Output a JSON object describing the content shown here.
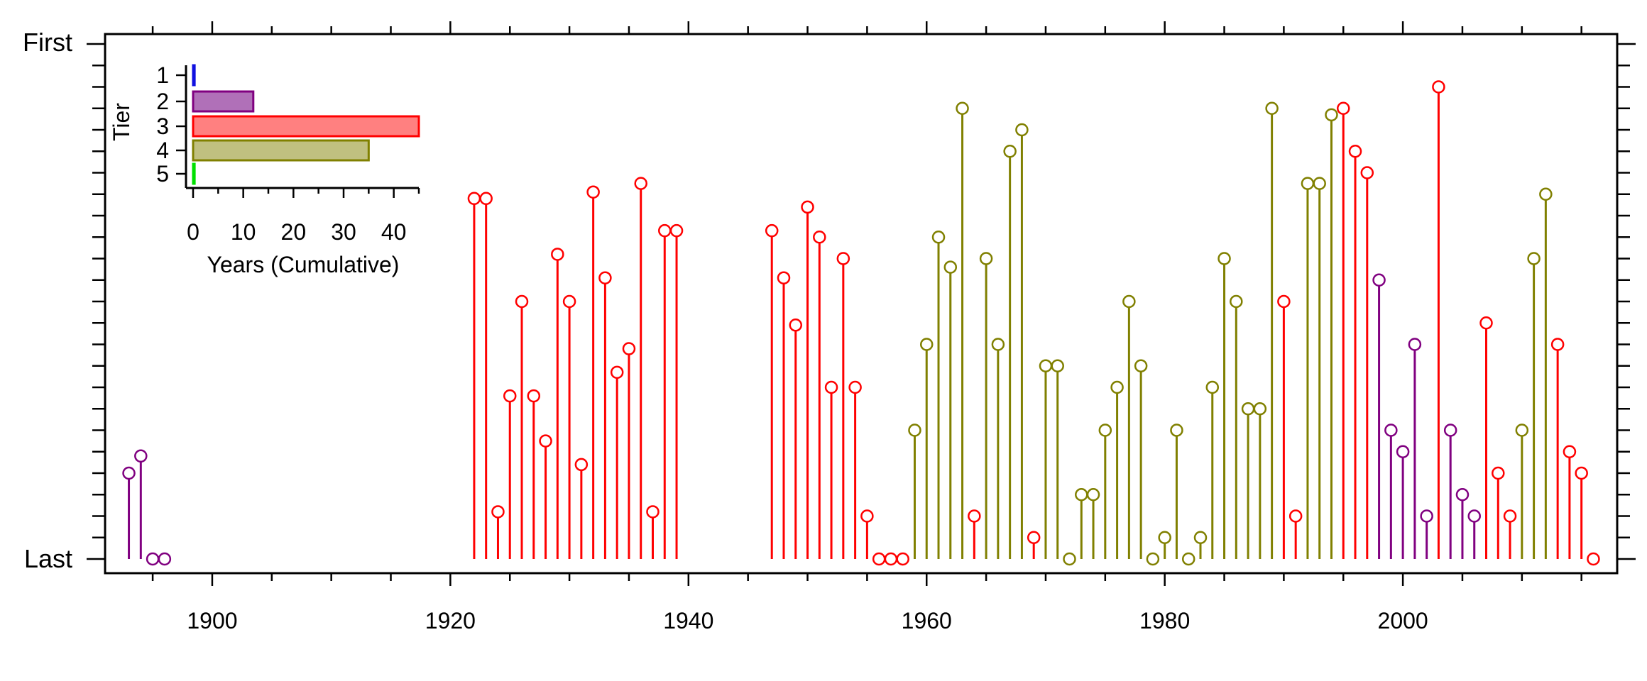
{
  "chart_data": [
    {
      "type": "lollipop",
      "y_top_label": "First",
      "y_bottom_label": "Last",
      "xlim": [
        1891,
        2018
      ],
      "ylim": [
        0,
        24
      ],
      "x_ticks": [
        1900,
        1920,
        1940,
        1960,
        1980,
        2000
      ],
      "tier_colors": {
        "1": "#1010e0",
        "2": "#800080",
        "3": "#ff0000",
        "4": "#808000",
        "5": "#00e000"
      },
      "series": [
        {
          "tier": 2,
          "points": [
            [
              1893,
              4
            ],
            [
              1894,
              4.8
            ],
            [
              1895,
              0
            ],
            [
              1896,
              0
            ],
            [
              1998,
              13
            ],
            [
              1999,
              6
            ],
            [
              2000,
              5
            ],
            [
              2001,
              10
            ],
            [
              2002,
              2
            ],
            [
              2004,
              6
            ],
            [
              2005,
              3
            ],
            [
              2006,
              2
            ]
          ]
        },
        {
          "tier": 3,
          "points": [
            [
              1922,
              16.8
            ],
            [
              1923,
              16.8
            ],
            [
              1924,
              2.2
            ],
            [
              1925,
              7.6
            ],
            [
              1926,
              12
            ],
            [
              1927,
              7.6
            ],
            [
              1928,
              5.5
            ],
            [
              1929,
              14.2
            ],
            [
              1930,
              12
            ],
            [
              1931,
              4.4
            ],
            [
              1932,
              17.1
            ],
            [
              1933,
              13.1
            ],
            [
              1934,
              8.7
            ],
            [
              1935,
              9.8
            ],
            [
              1936,
              17.5
            ],
            [
              1937,
              2.2
            ],
            [
              1938,
              15.3
            ],
            [
              1939,
              15.3
            ],
            [
              1947,
              15.3
            ],
            [
              1948,
              13.1
            ],
            [
              1949,
              10.9
            ],
            [
              1950,
              16.4
            ],
            [
              1951,
              15
            ],
            [
              1952,
              8
            ],
            [
              1953,
              14
            ],
            [
              1954,
              8
            ],
            [
              1955,
              2
            ],
            [
              1956,
              0
            ],
            [
              1957,
              0
            ],
            [
              1958,
              0
            ],
            [
              1964,
              2
            ],
            [
              1969,
              1
            ],
            [
              1990,
              12
            ],
            [
              1991,
              2
            ],
            [
              1995,
              21
            ],
            [
              1996,
              19
            ],
            [
              1997,
              18
            ],
            [
              2003,
              22
            ],
            [
              2007,
              11
            ],
            [
              2008,
              4
            ],
            [
              2009,
              2
            ],
            [
              2013,
              10
            ],
            [
              2014,
              5
            ],
            [
              2015,
              4
            ],
            [
              2016,
              0
            ]
          ]
        },
        {
          "tier": 4,
          "points": [
            [
              1959,
              6
            ],
            [
              1960,
              10
            ],
            [
              1961,
              15
            ],
            [
              1962,
              13.6
            ],
            [
              1963,
              21
            ],
            [
              1965,
              14
            ],
            [
              1966,
              10
            ],
            [
              1967,
              19
            ],
            [
              1968,
              20
            ],
            [
              1970,
              9
            ],
            [
              1971,
              9
            ],
            [
              1972,
              0
            ],
            [
              1973,
              3
            ],
            [
              1974,
              3
            ],
            [
              1975,
              6
            ],
            [
              1976,
              8
            ],
            [
              1977,
              12
            ],
            [
              1978,
              9
            ],
            [
              1979,
              0
            ],
            [
              1980,
              1
            ],
            [
              1981,
              6
            ],
            [
              1982,
              0
            ],
            [
              1983,
              1
            ],
            [
              1984,
              8
            ],
            [
              1985,
              14
            ],
            [
              1986,
              12
            ],
            [
              1987,
              7
            ],
            [
              1988,
              7
            ],
            [
              1989,
              21
            ],
            [
              1992,
              17.5
            ],
            [
              1993,
              17.5
            ],
            [
              1994,
              20.7
            ],
            [
              2010,
              6
            ],
            [
              2011,
              14
            ],
            [
              2012,
              17
            ]
          ]
        }
      ]
    },
    {
      "type": "bar",
      "orientation": "horizontal",
      "categories": [
        "1",
        "2",
        "3",
        "4",
        "5"
      ],
      "values": [
        0.3,
        12,
        45,
        35,
        0.3
      ],
      "ylabel": "Tier",
      "xlabel": "Years (Cumulative)",
      "xlim": [
        0,
        45
      ],
      "x_ticks": [
        0,
        10,
        20,
        30,
        40
      ]
    }
  ]
}
